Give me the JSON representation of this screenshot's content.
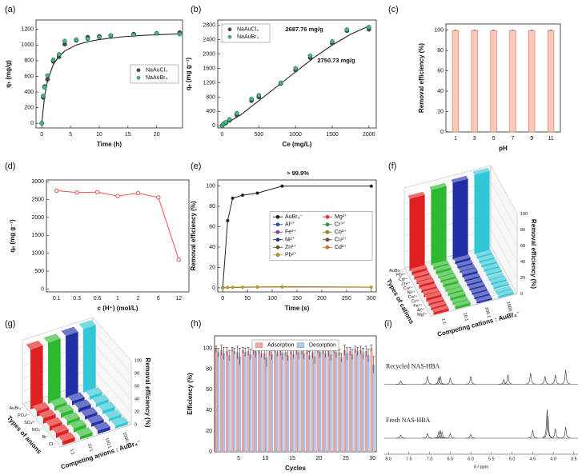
{
  "chart_data": [
    {
      "type": "scatter",
      "label": "(a)",
      "xlabel": "Time (h)",
      "ylabel": "qₜ (mg/g)",
      "xlim": [
        -1,
        24.5
      ],
      "ylim": [
        -60,
        1320
      ],
      "xticks": [
        0,
        5,
        10,
        15,
        20
      ],
      "yticks": [
        0,
        200,
        400,
        600,
        800,
        1000,
        1200
      ],
      "legend": "center right",
      "series": [
        {
          "name": "NaAuCl₄",
          "color": "#4a4a4a",
          "x": [
            0,
            0.25,
            0.5,
            1,
            2,
            3,
            4,
            6,
            8,
            10,
            12,
            16,
            20,
            24
          ],
          "values": [
            0,
            330,
            470,
            560,
            790,
            850,
            1010,
            1060,
            1100,
            1110,
            1120,
            1140,
            1150,
            1160
          ]
        },
        {
          "name": "NaAuBr₄",
          "color": "#3dbb7a",
          "x": [
            0,
            0.25,
            0.5,
            1,
            2,
            3,
            4,
            6,
            8,
            10,
            12,
            16,
            20,
            24
          ],
          "values": [
            0,
            350,
            460,
            610,
            810,
            880,
            1050,
            1070,
            1080,
            1100,
            1120,
            1130,
            1150,
            1140
          ]
        }
      ],
      "fit": {
        "color": "#222222",
        "x": [
          0,
          0.5,
          1,
          2,
          3,
          4,
          6,
          8,
          10,
          14,
          18,
          24
        ],
        "values": [
          0,
          353,
          545,
          750,
          857,
          923,
          1000,
          1043,
          1071,
          1105,
          1125,
          1143
        ]
      }
    },
    {
      "type": "scatter",
      "label": "(b)",
      "xlabel": "Ce (mg/L)",
      "ylabel": "qₑ (mg g⁻¹)",
      "xlim": [
        -60,
        2100
      ],
      "ylim": [
        -60,
        2950
      ],
      "xticks": [
        0,
        500,
        1000,
        1500,
        2000
      ],
      "yticks": [
        0,
        400,
        800,
        1200,
        1600,
        2000,
        2400,
        2800
      ],
      "legend": "upper left",
      "annotations": [
        {
          "text": "2687.76 mg/g",
          "color": "#111111"
        },
        {
          "text": "2750.73 mg/g",
          "color": "#2fa865"
        }
      ],
      "series": [
        {
          "name": "NaAuCl₄",
          "color": "#4a4a4a",
          "x": [
            0,
            20,
            50,
            100,
            200,
            400,
            500,
            800,
            1000,
            1200,
            1500,
            1700,
            2000
          ],
          "values": [
            0,
            50,
            80,
            150,
            300,
            700,
            800,
            1180,
            1550,
            1900,
            2300,
            2650,
            2690
          ]
        },
        {
          "name": "NaAuBr₄",
          "color": "#3dbb7a",
          "x": [
            0,
            20,
            50,
            100,
            200,
            400,
            500,
            800,
            1000,
            1200,
            1500,
            1700,
            2000
          ],
          "values": [
            0,
            60,
            100,
            180,
            350,
            750,
            850,
            1200,
            1600,
            1950,
            2350,
            2680,
            2750
          ]
        }
      ],
      "fit": {
        "color": "#222222",
        "x": [
          0,
          250,
          500,
          750,
          1000,
          1250,
          1500,
          1750,
          2000
        ],
        "values": [
          0,
          300,
          700,
          1100,
          1500,
          1900,
          2250,
          2550,
          2780
        ]
      }
    },
    {
      "type": "bar",
      "label": "(c)",
      "xlabel": "pH",
      "ylabel": "Removal efficiency (%)",
      "categories": [
        "1",
        "3",
        "5",
        "7",
        "9",
        "11"
      ],
      "values": [
        99.6,
        99.7,
        99.6,
        99.7,
        99.6,
        99.6
      ],
      "errors": [
        0.4,
        0.3,
        0.4,
        0.3,
        0.4,
        0.4
      ],
      "color": "#f8c9bb",
      "edge_color": "#e07a66",
      "ylim": [
        0,
        106
      ],
      "yticks": [
        0,
        20,
        40,
        60,
        80,
        100
      ]
    },
    {
      "type": "line",
      "label": "(d)",
      "xlabel": "c (H⁺) (mol/L)",
      "ylabel": "qₑ (mg g⁻¹)",
      "categories": [
        "0.1",
        "0.3",
        "0.6",
        "1",
        "2",
        "6",
        "12"
      ],
      "values": [
        2750,
        2700,
        2710,
        2600,
        2680,
        2560,
        820
      ],
      "color": "#e8534f",
      "ylim": [
        -80,
        3050
      ],
      "yticks": [
        0,
        500,
        1000,
        1500,
        2000,
        2500,
        3000
      ]
    },
    {
      "type": "line",
      "label": "(e)",
      "xlabel": "Time (s)",
      "ylabel": "Removal efficiency (%)",
      "xlim": [
        -10,
        310
      ],
      "ylim": [
        -4,
        106
      ],
      "xticks": [
        0,
        50,
        100,
        150,
        200,
        250,
        300
      ],
      "yticks": [
        0,
        20,
        40,
        60,
        80,
        100
      ],
      "legend": "center right",
      "legend_columns": 2,
      "annotations": [
        {
          "text": "> 99.9%",
          "color": "#2b3fb8"
        }
      ],
      "x": [
        0,
        10,
        20,
        40,
        70,
        120,
        300
      ],
      "series": [
        {
          "name": "AuBr₄⁻",
          "color": "#222222",
          "values": [
            0,
            66,
            88,
            91,
            93,
            99.9,
            99.9
          ]
        },
        {
          "name": "Mg²⁺",
          "color": "#e53935",
          "values": [
            0,
            0.5,
            0.6,
            0.8,
            1.0,
            1.2,
            0.8
          ]
        },
        {
          "name": "Al³⁺",
          "color": "#1e4fd8",
          "values": [
            0,
            0.4,
            0.5,
            0.7,
            0.9,
            1.0,
            0.7
          ]
        },
        {
          "name": "Cr³⁺",
          "color": "#2e9e3e",
          "values": [
            0,
            0.3,
            0.6,
            0.6,
            0.8,
            0.9,
            0.6
          ]
        },
        {
          "name": "Fe³⁺",
          "color": "#8e44ad",
          "values": [
            0,
            0.5,
            0.4,
            0.7,
            0.7,
            1.1,
            0.9
          ]
        },
        {
          "name": "Co²⁺",
          "color": "#9a8a1c",
          "values": [
            0,
            0.2,
            0.4,
            0.5,
            0.6,
            0.8,
            0.5
          ]
        },
        {
          "name": "Ni²⁺",
          "color": "#1b2a8a",
          "values": [
            0,
            0.3,
            0.3,
            0.6,
            0.8,
            0.7,
            0.6
          ]
        },
        {
          "name": "Cu²⁺",
          "color": "#7b3f2a",
          "values": [
            0,
            0.4,
            0.5,
            0.6,
            0.7,
            0.9,
            0.7
          ]
        },
        {
          "name": "Zn²⁺",
          "color": "#5d5a1a",
          "values": [
            0,
            0.2,
            0.3,
            0.4,
            0.6,
            0.6,
            0.5
          ]
        },
        {
          "name": "Cd²⁺",
          "color": "#f06a1f",
          "values": [
            0,
            0.3,
            0.4,
            0.5,
            0.5,
            0.7,
            0.6
          ]
        },
        {
          "name": "Pb²⁺",
          "color": "#b8a01a",
          "values": [
            0,
            0.5,
            0.6,
            0.7,
            0.9,
            1.0,
            0.8
          ]
        }
      ]
    },
    {
      "type": "bar3d",
      "label": "(f)",
      "xlabel": "Types of cations",
      "series_label": "Competing cations : AuBr₄⁻",
      "ylabel": "Removal efficiency (%)",
      "ylim": [
        0,
        100
      ],
      "yticks": [
        0,
        20,
        40,
        60,
        80,
        100
      ],
      "categories": [
        "AuBr₄⁻",
        "Pb²⁺",
        "Cd²⁺",
        "Zn²⁺",
        "Cu²⁺",
        "Ni²⁺",
        "Co²⁺",
        "Cr³⁺",
        "Fe³⁺",
        "Al³⁺",
        "Mg²⁺"
      ],
      "series": [
        {
          "name": "1:1",
          "color": "#e02020",
          "values": [
            90,
            4,
            3,
            3,
            4,
            3,
            3,
            4,
            3,
            3,
            3
          ]
        },
        {
          "name": "10:1",
          "color": "#2eb82e",
          "values": [
            94,
            3,
            3,
            2,
            3,
            3,
            2,
            3,
            3,
            2,
            3
          ]
        },
        {
          "name": "100:1",
          "color": "#2230a8",
          "values": [
            96,
            3,
            2,
            2,
            3,
            2,
            2,
            2,
            2,
            2,
            2
          ]
        },
        {
          "name": "1000:1",
          "color": "#33c6d6",
          "values": [
            99,
            2,
            2,
            2,
            2,
            2,
            1,
            2,
            2,
            1,
            2
          ]
        }
      ]
    },
    {
      "type": "bar3d",
      "label": "(g)",
      "xlabel": "Types of anions",
      "series_label": "Competing anions : AuBr₄⁻",
      "ylabel": "Removal efficiency (%)",
      "ylim": [
        0,
        100
      ],
      "yticks": [
        0,
        20,
        40,
        60,
        80,
        100
      ],
      "categories": [
        "AuBr₄⁻",
        "PO₄³⁻",
        "SO₄²⁻",
        "NO₃⁻",
        "Br⁻",
        "Cl⁻"
      ],
      "series": [
        {
          "name": "1:1",
          "color": "#e02020",
          "values": [
            93,
            8,
            8,
            7,
            7,
            6
          ]
        },
        {
          "name": "10:1",
          "color": "#2eb82e",
          "values": [
            95,
            7,
            7,
            6,
            6,
            5
          ]
        },
        {
          "name": "100:1",
          "color": "#2230a8",
          "values": [
            97,
            6,
            6,
            5,
            5,
            5
          ]
        },
        {
          "name": "1000:1",
          "color": "#33c6d6",
          "values": [
            99,
            5,
            5,
            5,
            4,
            4
          ]
        }
      ]
    },
    {
      "type": "bar",
      "label": "(h)",
      "xlabel": "Cycles",
      "ylabel": "Efficiency (%)",
      "xlim": [
        0.5,
        30.7
      ],
      "ylim": [
        0,
        112
      ],
      "xticks": [
        5,
        10,
        15,
        20,
        25,
        30
      ],
      "yticks": [
        0,
        20,
        40,
        60,
        80,
        100
      ],
      "legend": "upper center",
      "legend_columns": 2,
      "x": [
        1,
        2,
        3,
        4,
        5,
        6,
        7,
        8,
        9,
        10,
        11,
        12,
        13,
        14,
        15,
        16,
        17,
        18,
        19,
        20,
        21,
        22,
        23,
        24,
        25,
        26,
        27,
        28,
        29,
        30
      ],
      "series": [
        {
          "name": "Adsorption",
          "color": "#f4a6a6",
          "values": [
            99,
            98,
            97,
            99,
            96,
            98,
            97,
            99,
            98,
            95,
            97,
            99,
            98,
            96,
            97,
            99,
            98,
            97,
            96,
            99,
            98,
            97,
            99,
            96,
            98,
            97,
            99,
            98,
            97,
            100
          ],
          "errors": [
            3,
            5,
            4,
            2,
            6,
            3,
            4,
            5,
            3,
            6,
            4,
            3,
            5,
            4,
            3,
            5,
            4,
            3,
            6,
            4,
            3,
            5,
            4,
            3,
            5,
            4,
            3,
            4,
            5,
            3
          ]
        },
        {
          "name": "Desorption",
          "color": "#a9c9ee",
          "values": [
            96,
            95,
            93,
            97,
            92,
            96,
            94,
            97,
            95,
            91,
            94,
            96,
            95,
            93,
            94,
            96,
            95,
            93,
            92,
            96,
            95,
            94,
            96,
            91,
            95,
            94,
            97,
            95,
            93,
            84
          ],
          "errors": [
            4,
            6,
            5,
            3,
            8,
            4,
            5,
            6,
            4,
            9,
            5,
            4,
            6,
            5,
            4,
            6,
            5,
            4,
            7,
            5,
            4,
            6,
            5,
            4,
            6,
            5,
            4,
            5,
            6,
            8
          ]
        }
      ]
    },
    {
      "type": "spectrum",
      "label": "(i)",
      "xlabel": "δ / ppm",
      "xlim": [
        8.1,
        3.4
      ],
      "xticks": [
        {
          "value": 8,
          "label": "8.0"
        },
        7.5,
        {
          "value": 7,
          "label": "7.0"
        },
        6.5,
        {
          "value": 6,
          "label": "6.0"
        },
        5.5,
        {
          "value": 5,
          "label": "5.0"
        },
        4.5,
        {
          "value": 4,
          "label": "4.0"
        },
        3.5
      ],
      "series": [
        {
          "name": "Recycled NAS-HBA",
          "color": "#333333",
          "x": [
            7.7,
            7.05,
            6.78,
            6.74,
            6.5,
            6.0,
            5.2,
            5.1,
            4.55,
            4.2,
            3.95,
            3.7
          ],
          "values": [
            0.1,
            0.25,
            0.2,
            0.25,
            0.2,
            0.25,
            0.15,
            0.3,
            0.35,
            0.25,
            0.3,
            0.45
          ]
        },
        {
          "name": "Fresh NAS-HBA",
          "color": "#333333",
          "x": [
            7.7,
            7.05,
            6.78,
            6.74,
            6.7,
            6.5,
            6.0,
            4.5,
            4.15,
            4.13,
            3.95,
            3.7
          ],
          "values": [
            0.1,
            0.15,
            0.2,
            0.25,
            0.2,
            0.15,
            0.12,
            0.25,
            0.9,
            0.7,
            0.3,
            0.35
          ]
        }
      ]
    }
  ]
}
